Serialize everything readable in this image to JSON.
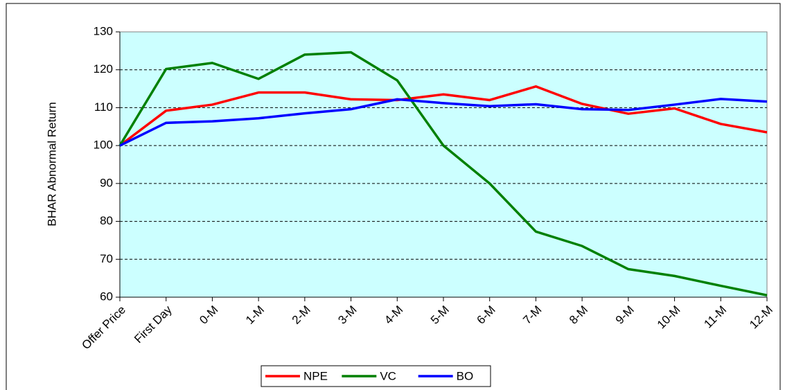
{
  "chart_data": {
    "type": "line",
    "y_axis_label": "BHAR Abnormal Return",
    "categories": [
      "Offer Price",
      "First Day",
      "0-M",
      "1-M",
      "2-M",
      "3-M",
      "4-M",
      "5-M",
      "6-M",
      "7-M",
      "8-M",
      "9-M",
      "10-M",
      "11-M",
      "12-M"
    ],
    "series": [
      {
        "name": "NPE",
        "color": "#ff0000",
        "values": [
          100,
          109.2,
          110.8,
          114,
          114,
          112.2,
          112,
          113.5,
          112,
          115.6,
          111,
          108.4,
          109.8,
          105.7,
          103.5
        ]
      },
      {
        "name": "VC",
        "color": "#008000",
        "values": [
          100,
          120.2,
          121.8,
          117.6,
          124,
          124.6,
          117.2,
          100,
          90,
          77.3,
          73.5,
          67.4,
          65.6,
          63,
          60.5
        ]
      },
      {
        "name": "BO",
        "color": "#0000ff",
        "values": [
          100,
          106,
          106.4,
          107.2,
          108.5,
          109.6,
          112.2,
          111.2,
          110.4,
          110.9,
          109.6,
          109.4,
          110.8,
          112.3,
          111.6
        ]
      }
    ],
    "ylim": [
      60,
      130
    ],
    "yticks": [
      60,
      70,
      80,
      90,
      100,
      110,
      120,
      130
    ],
    "grid": true,
    "legend": "bottom",
    "plot_background": "#ccffff"
  }
}
